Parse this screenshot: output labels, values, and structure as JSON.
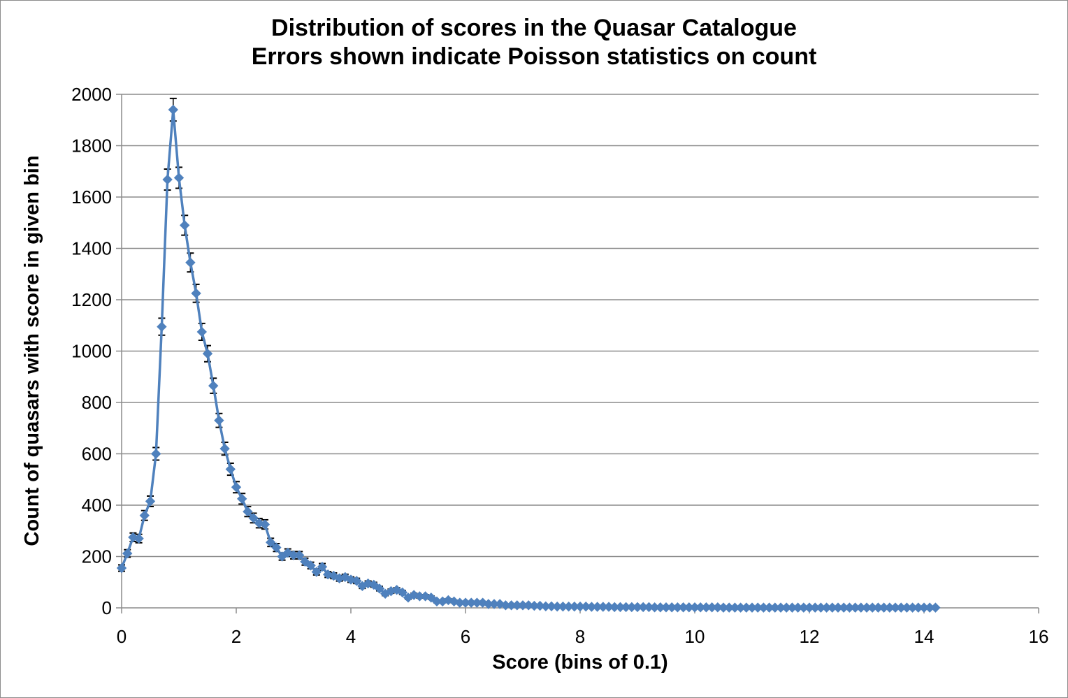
{
  "chart_data": {
    "type": "scatter",
    "title": "Distribution of scores in the Quasar Catalogue",
    "subtitle": "Errors shown indicate Poisson statistics on count",
    "xlabel": "Score (bins of 0.1)",
    "ylabel": "Count of quasars with score in given bin",
    "xlim": [
      0,
      16
    ],
    "ylim": [
      0,
      2000
    ],
    "x_ticks": [
      "0",
      "2",
      "4",
      "6",
      "8",
      "10",
      "12",
      "14",
      "16"
    ],
    "y_ticks": [
      "0",
      "200",
      "400",
      "600",
      "800",
      "1000",
      "1200",
      "1400",
      "1600",
      "1800",
      "2000"
    ],
    "grid": "horizontal",
    "error_bars": "poisson (sqrt of count)",
    "series": [
      {
        "color": "#4f81bd",
        "marker": "diamond",
        "line": true,
        "x": [
          0.0,
          0.1,
          0.2,
          0.3,
          0.4,
          0.5,
          0.6,
          0.7,
          0.8,
          0.9,
          1.0,
          1.1,
          1.2,
          1.3,
          1.4,
          1.5,
          1.6,
          1.7,
          1.8,
          1.9,
          2.0,
          2.1,
          2.2,
          2.3,
          2.4,
          2.5,
          2.6,
          2.7,
          2.8,
          2.9,
          3.0,
          3.1,
          3.2,
          3.3,
          3.4,
          3.5,
          3.6,
          3.7,
          3.8,
          3.9,
          4.0,
          4.1,
          4.2,
          4.3,
          4.4,
          4.5,
          4.6,
          4.7,
          4.8,
          4.9,
          5.0,
          5.1,
          5.2,
          5.3,
          5.4,
          5.5,
          5.6,
          5.7,
          5.8,
          5.9,
          6.0,
          6.1,
          6.2,
          6.3,
          6.4,
          6.5,
          6.6,
          6.7,
          6.8,
          6.9,
          7.0,
          7.1,
          7.2,
          7.3,
          7.4,
          7.5,
          7.6,
          7.7,
          7.8,
          7.9,
          8.0,
          8.1,
          8.2,
          8.3,
          8.4,
          8.5,
          8.6,
          8.7,
          8.8,
          8.9,
          9.0,
          9.1,
          9.2,
          9.3,
          9.4,
          9.5,
          9.6,
          9.7,
          9.8,
          9.9,
          10.0,
          10.1,
          10.2,
          10.3,
          10.4,
          10.5,
          10.6,
          10.7,
          10.8,
          10.9,
          11.0,
          11.1,
          11.2,
          11.3,
          11.4,
          11.5,
          11.6,
          11.7,
          11.8,
          11.9,
          12.0,
          12.1,
          12.2,
          12.3,
          12.4,
          12.5,
          12.6,
          12.7,
          12.8,
          12.9,
          13.0,
          13.1,
          13.2,
          13.3,
          13.4,
          13.5,
          13.6,
          13.7,
          13.8,
          13.9,
          14.0,
          14.1,
          14.2
        ],
        "y": [
          155,
          212,
          275,
          270,
          360,
          415,
          600,
          1095,
          1668,
          1940,
          1675,
          1490,
          1345,
          1225,
          1075,
          990,
          865,
          730,
          620,
          540,
          470,
          425,
          375,
          350,
          330,
          325,
          255,
          235,
          200,
          215,
          205,
          205,
          180,
          165,
          140,
          160,
          130,
          125,
          115,
          120,
          110,
          105,
          85,
          95,
          90,
          75,
          55,
          65,
          70,
          60,
          40,
          50,
          45,
          45,
          40,
          25,
          25,
          30,
          25,
          20,
          20,
          20,
          20,
          20,
          15,
          15,
          15,
          10,
          10,
          10,
          10,
          10,
          8,
          8,
          6,
          6,
          5,
          5,
          5,
          5,
          5,
          5,
          4,
          4,
          4,
          4,
          3,
          3,
          3,
          3,
          3,
          3,
          3,
          2,
          2,
          2,
          2,
          2,
          2,
          2,
          2,
          2,
          2,
          2,
          2,
          1,
          1,
          1,
          1,
          1,
          1,
          1,
          1,
          1,
          1,
          1,
          1,
          1,
          1,
          1,
          1,
          1,
          1,
          1,
          1,
          1,
          1,
          1,
          1,
          1,
          1,
          1,
          1,
          1,
          1,
          1,
          1,
          1,
          1,
          1,
          1,
          1,
          1
        ]
      }
    ]
  }
}
